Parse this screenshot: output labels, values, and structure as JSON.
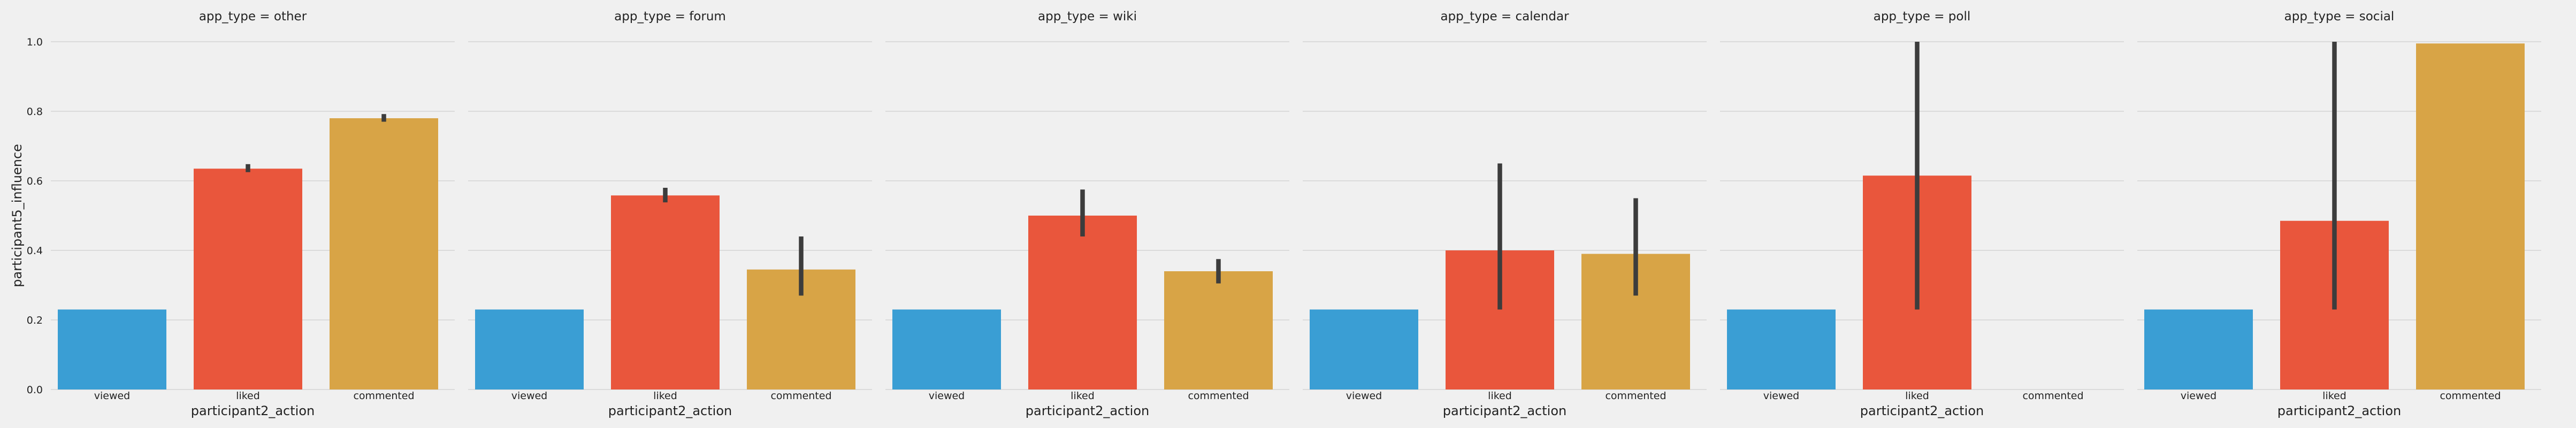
{
  "chart_data": {
    "type": "bar",
    "ylabel": "participant5_influence",
    "xlabel": "participant2_action",
    "ylim": [
      0,
      1.0
    ],
    "yticks": [
      "0.0",
      "0.2",
      "0.4",
      "0.6",
      "0.8",
      "1.0"
    ],
    "ytick_values": [
      0,
      0.2,
      0.4,
      0.6,
      0.8,
      1.0
    ],
    "categories": [
      "viewed",
      "liked",
      "commented"
    ],
    "colors": {
      "viewed": "#3a9ed4",
      "liked": "#e9563c",
      "commented": "#d8a446",
      "errorbar": "#3c3c3c",
      "grid": "#d4d4d4",
      "background": "#f0f0f0"
    },
    "grid": true,
    "panels": [
      {
        "title": "app_type = other",
        "values": [
          0.23,
          0.635,
          0.78
        ],
        "ci": [
          null,
          [
            0.625,
            0.648
          ],
          [
            0.77,
            0.792
          ]
        ]
      },
      {
        "title": "app_type = forum",
        "values": [
          0.23,
          0.558,
          0.345
        ],
        "ci": [
          null,
          [
            0.538,
            0.58
          ],
          [
            0.27,
            0.44
          ]
        ]
      },
      {
        "title": "app_type = wiki",
        "values": [
          0.23,
          0.5,
          0.34
        ],
        "ci": [
          null,
          [
            0.44,
            0.575
          ],
          [
            0.305,
            0.375
          ]
        ]
      },
      {
        "title": "app_type = calendar",
        "values": [
          0.23,
          0.4,
          0.39
        ],
        "ci": [
          null,
          [
            0.23,
            0.65
          ],
          [
            0.27,
            0.55
          ]
        ]
      },
      {
        "title": "app_type = poll",
        "values": [
          0.23,
          0.615,
          null
        ],
        "ci": [
          null,
          [
            0.23,
            1.0
          ],
          null
        ]
      },
      {
        "title": "app_type = social",
        "values": [
          0.23,
          0.485,
          0.995
        ],
        "ci": [
          null,
          [
            0.23,
            1.0
          ],
          null
        ]
      }
    ]
  }
}
